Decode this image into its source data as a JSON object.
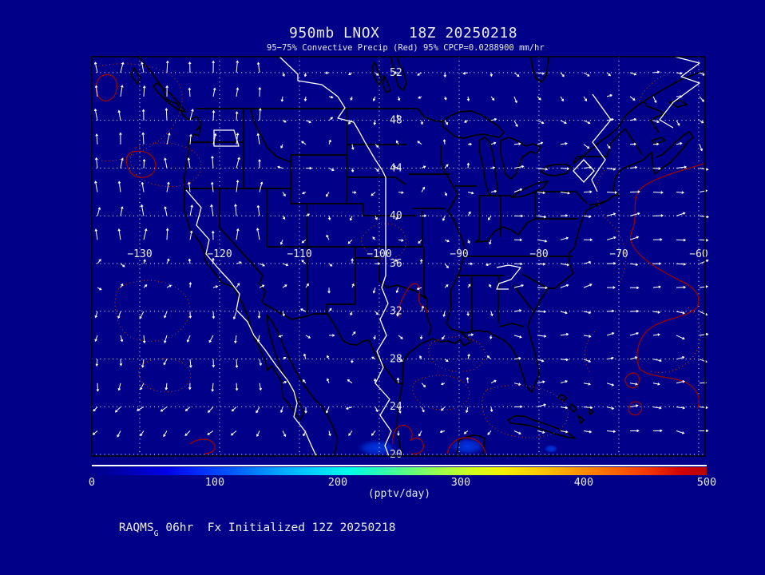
{
  "header": {
    "title_left": "950mb LNOX",
    "title_right": "18Z 20250218",
    "subtitle": "95−75% Convective Precip (Red) 95% CPCP=0.0288900 mm/hr"
  },
  "footer": {
    "model": "RAQMS",
    "model_subscript": "G",
    "text": " 06hr  Fx Initialized 12Z 20250218"
  },
  "chart_data": {
    "type": "map",
    "field": "950mb lightning NOx tendency",
    "valid_time": "18Z 20250218",
    "projection": "equirectangular lat-lon",
    "extent": {
      "lon_min": -136,
      "lon_max": -59.2,
      "lat_min": 19.9,
      "lat_max": 53.3
    },
    "grid": true,
    "lat_ticks": [
      52,
      48,
      44,
      40,
      36,
      32,
      28,
      24,
      20
    ],
    "lon_tick_labels": [
      "−130",
      "−120",
      "−110",
      "−100",
      "−90",
      "−80",
      "−70",
      "−60"
    ],
    "lon_ticks": [
      -130,
      -120,
      -110,
      -100,
      -90,
      -80,
      -70,
      -60
    ],
    "overlays": [
      {
        "name": "wind-vectors",
        "style": "white arrows on regular grid"
      },
      {
        "name": "convective-precip-95pct",
        "style": "solid red contour"
      },
      {
        "name": "convective-precip-75pct",
        "style": "dotted red contour"
      },
      {
        "name": "lnox-white-contours",
        "style": "solid white contour"
      },
      {
        "name": "coastlines-state-borders",
        "style": "black outline"
      },
      {
        "name": "lnox-shaded-fill",
        "style": "blue blobs near 20-24N"
      }
    ],
    "colorbar": {
      "min": 0,
      "max": 500,
      "ticks": [
        "0",
        "100",
        "200",
        "300",
        "400",
        "500"
      ],
      "units_label": "(pptv/day)",
      "stops": [
        [
          0,
          "#000089"
        ],
        [
          0.06,
          "#0000b4"
        ],
        [
          0.12,
          "#0000e8"
        ],
        [
          0.18,
          "#0030ff"
        ],
        [
          0.24,
          "#0064ff"
        ],
        [
          0.3,
          "#00a0ff"
        ],
        [
          0.36,
          "#00d2ff"
        ],
        [
          0.42,
          "#00ffe6"
        ],
        [
          0.47,
          "#2affb4"
        ],
        [
          0.52,
          "#64ff78"
        ],
        [
          0.57,
          "#a0ff46"
        ],
        [
          0.62,
          "#d2ff1e"
        ],
        [
          0.67,
          "#f5f000"
        ],
        [
          0.73,
          "#ffc800"
        ],
        [
          0.79,
          "#ff9600"
        ],
        [
          0.85,
          "#ff6400"
        ],
        [
          0.91,
          "#f03200"
        ],
        [
          0.96,
          "#d20000"
        ],
        [
          1,
          "#b80000"
        ]
      ]
    }
  },
  "colors": {
    "background": "#000089",
    "map_outline": "#000000",
    "grid_and_vectors": "#ffffff",
    "labels": "#ececec",
    "precip_solid": "#9e0000",
    "precip_dotted": "#b43214",
    "lnox_contour": "#ffffff",
    "lnox_fill_core": "#0033dd"
  }
}
